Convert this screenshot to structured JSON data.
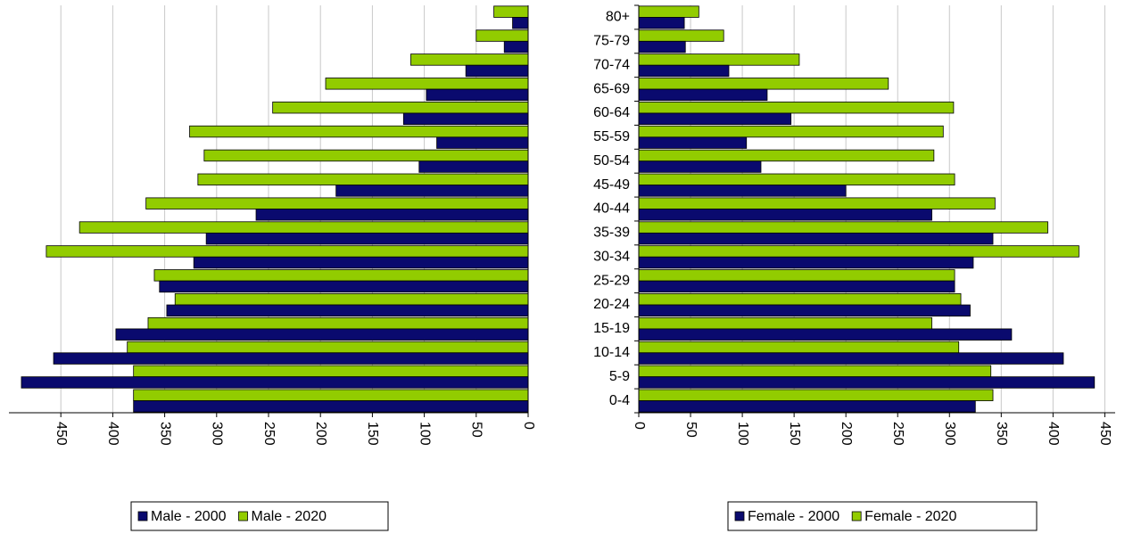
{
  "colors": {
    "series_2000": "#0a0a6e",
    "series_2020": "#92cc00",
    "grid": "#c8c8c8",
    "axis": "#000000"
  },
  "chart_data": [
    {
      "type": "bar",
      "orientation": "horizontal",
      "direction": "right-to-left",
      "categories": [
        "0-4",
        "5-9",
        "10-14",
        "15-19",
        "20-24",
        "25-29",
        "30-34",
        "35-39",
        "40-44",
        "45-49",
        "50-54",
        "55-59",
        "60-64",
        "65-69",
        "70-74",
        "75-79",
        "80+"
      ],
      "series": [
        {
          "name": "Male - 2000",
          "color_key": "series_2000",
          "values": [
            380,
            488,
            457,
            397,
            348,
            355,
            322,
            310,
            262,
            185,
            105,
            88,
            120,
            98,
            60,
            23,
            15
          ]
        },
        {
          "name": "Male - 2020",
          "color_key": "series_2020",
          "values": [
            380,
            380,
            386,
            366,
            340,
            360,
            464,
            432,
            368,
            318,
            312,
            326,
            246,
            195,
            113,
            50,
            33
          ]
        }
      ],
      "xlim": [
        0,
        500
      ],
      "xticks": [
        0,
        50,
        100,
        150,
        200,
        250,
        300,
        350,
        400,
        450
      ],
      "grid": true,
      "legend_position": "bottom"
    },
    {
      "type": "bar",
      "orientation": "horizontal",
      "direction": "left-to-right",
      "categories": [
        "0-4",
        "5-9",
        "10-14",
        "15-19",
        "20-24",
        "25-29",
        "30-34",
        "35-39",
        "40-44",
        "45-49",
        "50-54",
        "55-59",
        "60-64",
        "65-69",
        "70-74",
        "75-79",
        "80+"
      ],
      "series": [
        {
          "name": "Female - 2000",
          "color_key": "series_2000",
          "values": [
            325,
            440,
            410,
            360,
            320,
            305,
            323,
            342,
            283,
            200,
            118,
            104,
            147,
            124,
            87,
            45,
            44
          ]
        },
        {
          "name": "Female - 2020",
          "color_key": "series_2020",
          "values": [
            342,
            340,
            309,
            283,
            311,
            305,
            425,
            395,
            344,
            305,
            285,
            294,
            304,
            241,
            155,
            82,
            58
          ]
        }
      ],
      "xlim": [
        0,
        450
      ],
      "xticks": [
        0,
        50,
        100,
        150,
        200,
        250,
        300,
        350,
        400,
        450
      ],
      "grid": true,
      "legend_position": "bottom"
    }
  ]
}
